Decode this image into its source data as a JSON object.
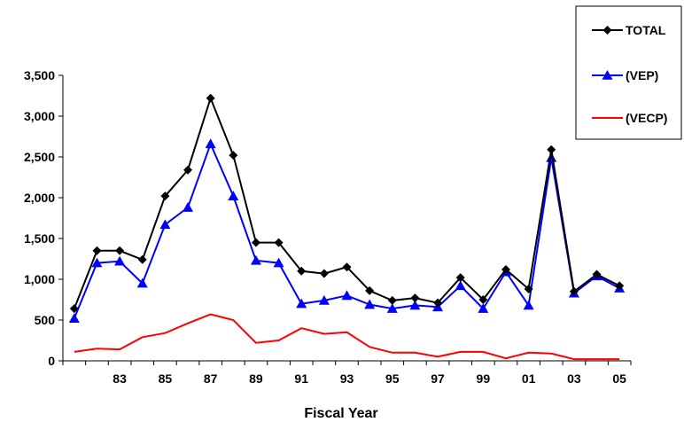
{
  "chart_data": {
    "type": "line",
    "title": "",
    "xlabel": "Fiscal Year",
    "ylabel": "",
    "x": [
      1981,
      1982,
      1983,
      1984,
      1985,
      1986,
      1987,
      1988,
      1989,
      1990,
      1991,
      1992,
      1993,
      1994,
      1995,
      1996,
      1997,
      1998,
      1999,
      2000,
      2001,
      2002,
      2003,
      2004,
      2005
    ],
    "x_tick_labels": [
      {
        "x": 1983,
        "label": "83"
      },
      {
        "x": 1985,
        "label": "85"
      },
      {
        "x": 1987,
        "label": "87"
      },
      {
        "x": 1989,
        "label": "89"
      },
      {
        "x": 1991,
        "label": "91"
      },
      {
        "x": 1993,
        "label": "93"
      },
      {
        "x": 1995,
        "label": "95"
      },
      {
        "x": 1997,
        "label": "97"
      },
      {
        "x": 1999,
        "label": "99"
      },
      {
        "x": 2001,
        "label": "01"
      },
      {
        "x": 2003,
        "label": "03"
      },
      {
        "x": 2005,
        "label": "05"
      }
    ],
    "y_ticks": [
      {
        "value": 0,
        "label": "0"
      },
      {
        "value": 500,
        "label": "500"
      },
      {
        "value": 1000,
        "label": "1,000"
      },
      {
        "value": 1500,
        "label": "1,500"
      },
      {
        "value": 2000,
        "label": "2,000"
      },
      {
        "value": 2500,
        "label": "2,500"
      },
      {
        "value": 3000,
        "label": "3,000"
      },
      {
        "value": 3500,
        "label": "3,500"
      }
    ],
    "ylim": [
      0,
      3500
    ],
    "grid": false,
    "legend_position": "top-right",
    "series": [
      {
        "name": "TOTAL",
        "color": "#000000",
        "marker": "diamond",
        "values": [
          640,
          1350,
          1350,
          1240,
          2020,
          2340,
          3220,
          2520,
          1450,
          1450,
          1100,
          1070,
          1150,
          860,
          740,
          770,
          710,
          1020,
          750,
          1120,
          880,
          2590,
          850,
          1060,
          920
        ]
      },
      {
        "name": "(VEP)",
        "color": "#0000ff",
        "marker": "triangle",
        "values": [
          520,
          1200,
          1220,
          950,
          1670,
          1880,
          2660,
          2020,
          1230,
          1200,
          700,
          740,
          800,
          690,
          640,
          680,
          660,
          920,
          640,
          1090,
          680,
          2490,
          830,
          1040,
          890
        ]
      },
      {
        "name": "(VECP)",
        "color": "#ff0000",
        "marker": "none",
        "values": [
          110,
          150,
          140,
          290,
          340,
          460,
          570,
          500,
          220,
          250,
          400,
          330,
          350,
          170,
          100,
          100,
          50,
          110,
          110,
          30,
          100,
          90,
          20,
          20,
          20
        ]
      }
    ]
  }
}
